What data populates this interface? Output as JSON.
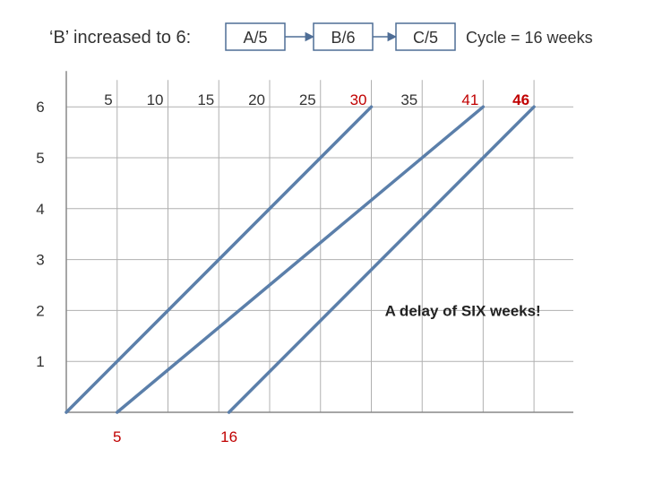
{
  "header": {
    "heading": "‘B’ increased to 6:",
    "stages": [
      {
        "label": "A/5"
      },
      {
        "label": "B/6"
      },
      {
        "label": "C/5"
      }
    ],
    "cycle_label": "Cycle = 16 weeks"
  },
  "chart_data": {
    "type": "line",
    "top_axis_ticks": [
      {
        "label": "5",
        "value": 5,
        "color": "#333333"
      },
      {
        "label": "10",
        "value": 10,
        "color": "#333333"
      },
      {
        "label": "15",
        "value": 15,
        "color": "#333333"
      },
      {
        "label": "20",
        "value": 20,
        "color": "#333333"
      },
      {
        "label": "25",
        "value": 25,
        "color": "#333333"
      },
      {
        "label": "30",
        "value": 30,
        "color": "#c00000"
      },
      {
        "label": "35",
        "value": 35,
        "color": "#333333"
      },
      {
        "label": "41",
        "value": 41,
        "color": "#c00000"
      },
      {
        "label": "46",
        "value": 46,
        "color": "#c00000",
        "bold": true
      }
    ],
    "bottom_axis_ticks": [
      {
        "label": "5",
        "value": 5,
        "color": "#c00000"
      },
      {
        "label": "16",
        "value": 16,
        "color": "#c00000"
      }
    ],
    "y_ticks": [
      {
        "label": "1",
        "value": 1
      },
      {
        "label": "2",
        "value": 2
      },
      {
        "label": "3",
        "value": 3
      },
      {
        "label": "4",
        "value": 4
      },
      {
        "label": "5",
        "value": 5
      },
      {
        "label": "6",
        "value": 6
      }
    ],
    "xlim": [
      0,
      50
    ],
    "ylim": [
      0,
      6
    ],
    "grid": true,
    "series": [
      {
        "points": [
          [
            0,
            0
          ],
          [
            30,
            6
          ]
        ]
      },
      {
        "points": [
          [
            5,
            0
          ],
          [
            41,
            6
          ]
        ]
      },
      {
        "points": [
          [
            16,
            0
          ],
          [
            46,
            6
          ]
        ]
      }
    ],
    "line_color": "#5b7faa",
    "annotation": {
      "text": "A delay of SIX weeks!",
      "x": 39,
      "y": 2
    }
  },
  "colors": {
    "grid": "#b0b0b0",
    "box_border": "#4f6e96",
    "arrow": "#4f6e96",
    "text": "#333333",
    "red": "#c00000"
  }
}
